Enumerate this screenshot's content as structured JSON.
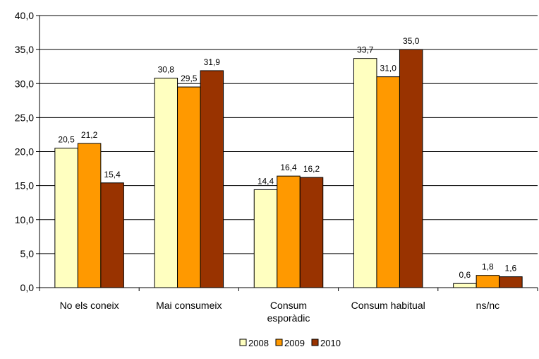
{
  "chart_data": {
    "type": "bar",
    "categories": [
      [
        "No els coneix"
      ],
      [
        "Mai consumeix"
      ],
      [
        "Consum",
        "esporàdic"
      ],
      [
        "Consum habitual"
      ],
      [
        "ns/nc"
      ]
    ],
    "series": [
      {
        "name": "2008",
        "color": "#FFFFC0",
        "values": [
          20.5,
          30.8,
          14.4,
          33.7,
          0.6
        ],
        "labels": [
          "20,5",
          "30,8",
          "14,4",
          "33,7",
          "0,6"
        ]
      },
      {
        "name": "2009",
        "color": "#FF9900",
        "values": [
          21.2,
          29.5,
          16.4,
          31.0,
          1.8
        ],
        "labels": [
          "21,2",
          "29,5",
          "16,4",
          "31,0",
          "1,8"
        ]
      },
      {
        "name": "2010",
        "color": "#993300",
        "values": [
          15.4,
          31.9,
          16.2,
          35.0,
          1.6
        ],
        "labels": [
          "15,4",
          "31,9",
          "16,2",
          "35,0",
          "1,6"
        ]
      }
    ],
    "ylim": [
      0,
      40
    ],
    "yticks": [
      0,
      5,
      10,
      15,
      20,
      25,
      30,
      35,
      40
    ],
    "ytick_labels": [
      "0,0",
      "5,0",
      "10,0",
      "15,0",
      "20,0",
      "25,0",
      "30,0",
      "35,0",
      "40,0"
    ],
    "grid": true,
    "legend": "bottom",
    "title": "",
    "xlabel": "",
    "ylabel": ""
  }
}
